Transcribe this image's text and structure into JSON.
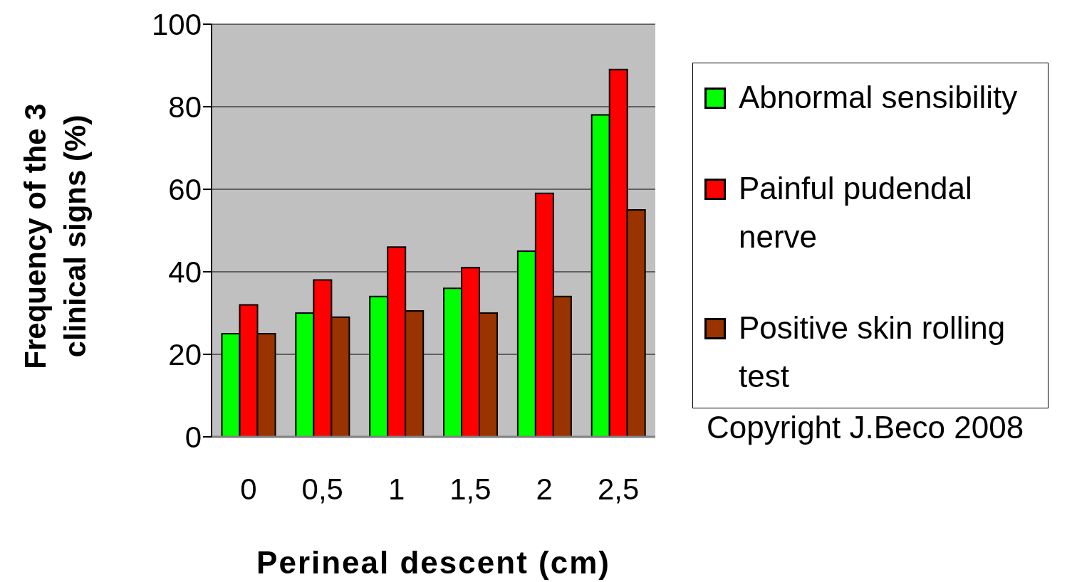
{
  "chart_data": {
    "type": "bar",
    "xlabel": "Perineal descent (cm)",
    "ylabel": "Frequency of the 3 clinical signs (%)",
    "categories": [
      "0",
      "0,5",
      "1",
      "1,5",
      "2",
      "2,5"
    ],
    "series": [
      {
        "name": "Abnormal sensibility",
        "color": "#00ff00",
        "values": [
          25,
          30,
          34,
          36,
          45,
          78
        ]
      },
      {
        "name": "Painful pudendal nerve",
        "color": "#ff0000",
        "values": [
          32,
          38,
          46,
          41,
          59,
          89
        ]
      },
      {
        "name": "Positive skin rolling test",
        "color": "#993300",
        "values": [
          25,
          29,
          30.5,
          30,
          34,
          55
        ]
      }
    ],
    "ylim": [
      0,
      100
    ],
    "yticks": [
      0,
      20,
      40,
      60,
      80,
      100
    ],
    "grid": "y",
    "legend": "right",
    "annotations": [
      "Copyright J.Beco 2008"
    ]
  }
}
